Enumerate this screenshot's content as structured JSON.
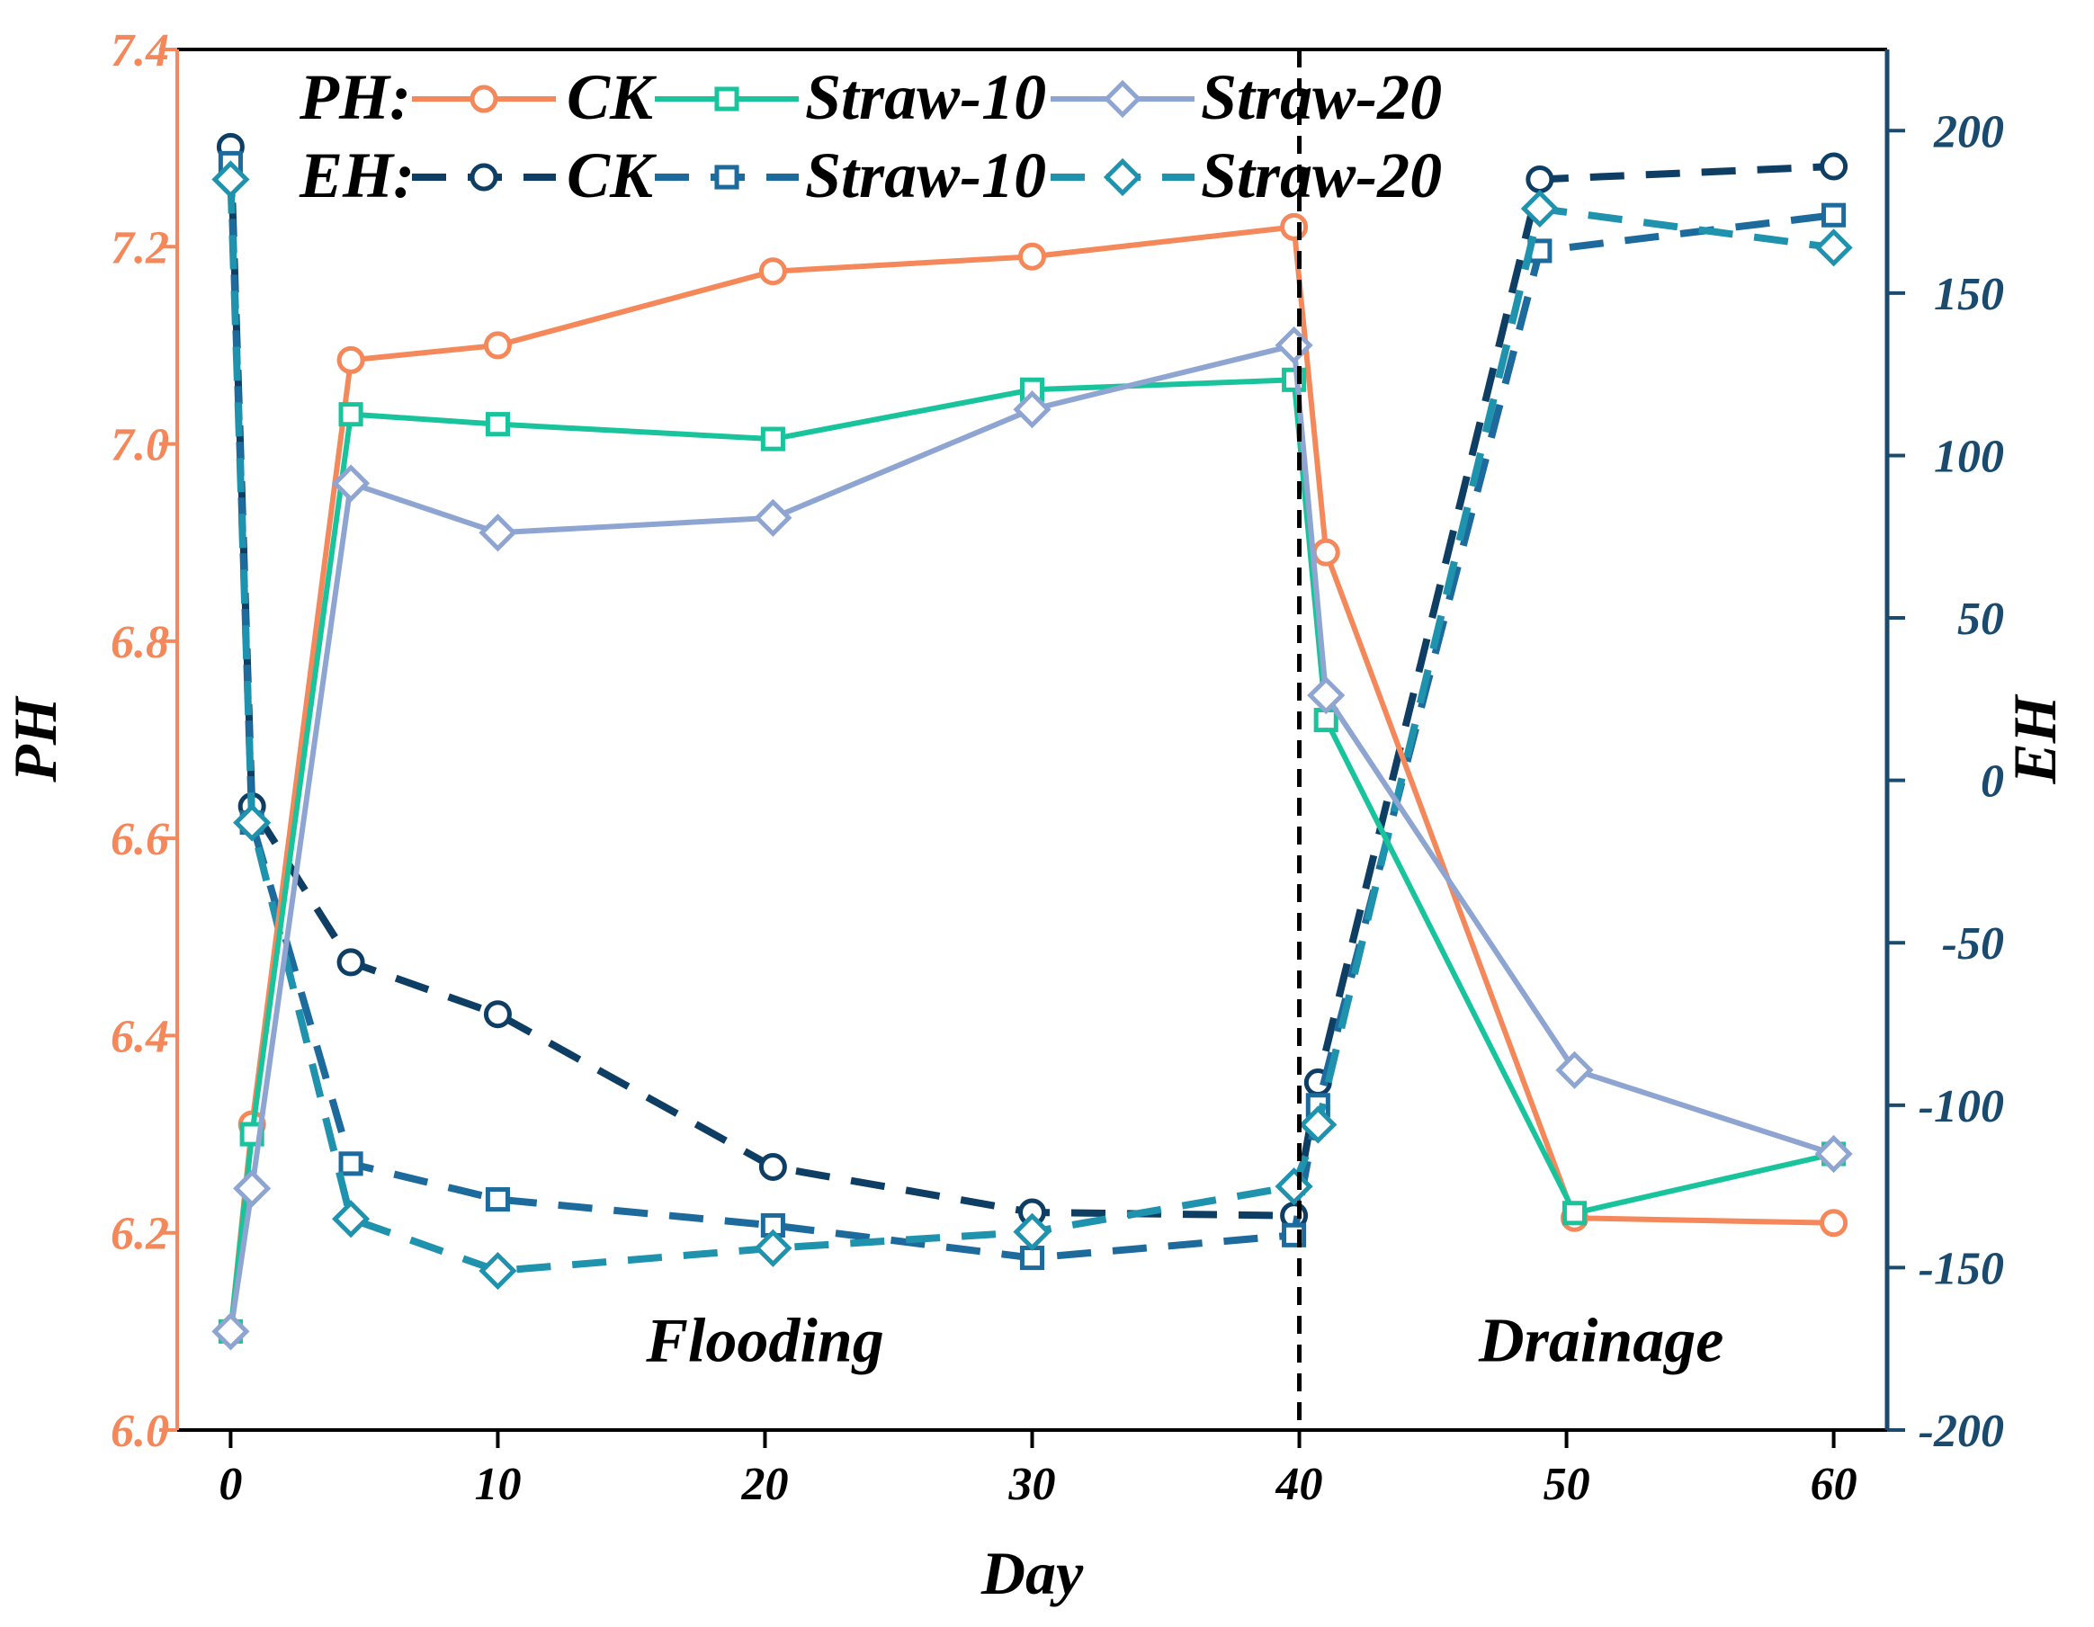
{
  "chart_data": {
    "type": "line",
    "xlabel": "Day",
    "ylabel_left": "PH",
    "ylabel_right": "EH",
    "xlim": [
      -2,
      62
    ],
    "ylim_left": [
      6.0,
      7.4
    ],
    "ylim_right": [
      -200,
      225
    ],
    "xticks": [
      0,
      10,
      20,
      30,
      40,
      50,
      60
    ],
    "xtick_labels": [
      "0",
      "10",
      "20",
      "30",
      "40",
      "50",
      "60"
    ],
    "yticks_left": [
      6.0,
      6.2,
      6.4,
      6.6,
      6.8,
      7.0,
      7.2,
      7.4
    ],
    "ytick_labels_left": [
      "6.0",
      "6.2",
      "6.4",
      "6.6",
      "6.8",
      "7.0",
      "7.2",
      "7.4"
    ],
    "yticks_right": [
      -200,
      -150,
      -100,
      -50,
      0,
      50,
      100,
      150,
      200
    ],
    "ytick_labels_right": [
      "-200",
      "-150",
      "-100",
      "-50",
      "0",
      "50",
      "100",
      "150",
      "200"
    ],
    "divider_x": 40,
    "regions": [
      {
        "label": "Flooding",
        "x": 20,
        "y_ph": 6.07
      },
      {
        "label": "Drainage",
        "x": 51.3,
        "y_ph": 6.07
      }
    ],
    "colors": {
      "left_axis": "#f4885a",
      "right_axis": "#1a4b6e",
      "frame": "#000000"
    },
    "legend": {
      "ph_prefix": "PH:",
      "eh_prefix": "EH:",
      "ph_entries": [
        "CK",
        "Straw-10",
        "Straw-20"
      ],
      "eh_entries": [
        "CK",
        "Straw-10",
        "Straw-20"
      ]
    },
    "series": [
      {
        "name": "CK",
        "group": "PH",
        "axis": "left",
        "color": "#f4885a",
        "marker": "circle",
        "dash": false,
        "x": [
          0,
          0.8,
          4.5,
          10,
          20.3,
          30,
          39.8,
          41,
          50.3,
          60
        ],
        "values": [
          6.1,
          6.31,
          7.085,
          7.1,
          7.175,
          7.19,
          7.22,
          6.89,
          6.215,
          6.21
        ]
      },
      {
        "name": "Straw-10",
        "group": "PH",
        "axis": "left",
        "color": "#19c49d",
        "marker": "square",
        "dash": false,
        "x": [
          0,
          0.8,
          4.5,
          10,
          20.3,
          30,
          39.8,
          41,
          50.3,
          60
        ],
        "values": [
          6.1,
          6.3,
          7.03,
          7.02,
          7.005,
          7.055,
          7.065,
          6.72,
          6.22,
          6.28
        ]
      },
      {
        "name": "Straw-20",
        "group": "PH",
        "axis": "left",
        "color": "#8ea5d1",
        "marker": "diamond",
        "dash": false,
        "x": [
          0,
          0.8,
          4.5,
          10,
          20.3,
          30,
          39.8,
          41,
          50.3,
          60
        ],
        "values": [
          6.1,
          6.245,
          6.96,
          6.91,
          6.925,
          7.035,
          7.1,
          6.745,
          6.365,
          6.28
        ]
      },
      {
        "name": "CK",
        "group": "EH",
        "axis": "right",
        "color": "#0e3e63",
        "marker": "circle",
        "dash": true,
        "x": [
          0,
          0.8,
          4.5,
          10,
          20.3,
          30,
          39.8,
          40.7,
          49,
          60
        ],
        "values": [
          195,
          -8,
          -56,
          -72,
          -119,
          -133,
          -134,
          -93,
          185,
          189
        ]
      },
      {
        "name": "Straw-10",
        "group": "EH",
        "axis": "right",
        "color": "#1d6a9c",
        "marker": "square",
        "dash": true,
        "x": [
          0,
          0.8,
          4.5,
          10,
          20.3,
          30,
          39.8,
          40.7,
          49,
          60
        ],
        "values": [
          190,
          -13,
          -118,
          -129,
          -137,
          -147,
          -140,
          -100,
          163,
          174
        ]
      },
      {
        "name": "Straw-20",
        "group": "EH",
        "axis": "right",
        "color": "#1f92ad",
        "marker": "diamond",
        "dash": true,
        "x": [
          0,
          0.8,
          4.5,
          10,
          20.3,
          30,
          39.8,
          40.7,
          49,
          60
        ],
        "values": [
          185,
          -13,
          -135,
          -151,
          -144,
          -139,
          -125,
          -106,
          176,
          164
        ]
      }
    ]
  }
}
